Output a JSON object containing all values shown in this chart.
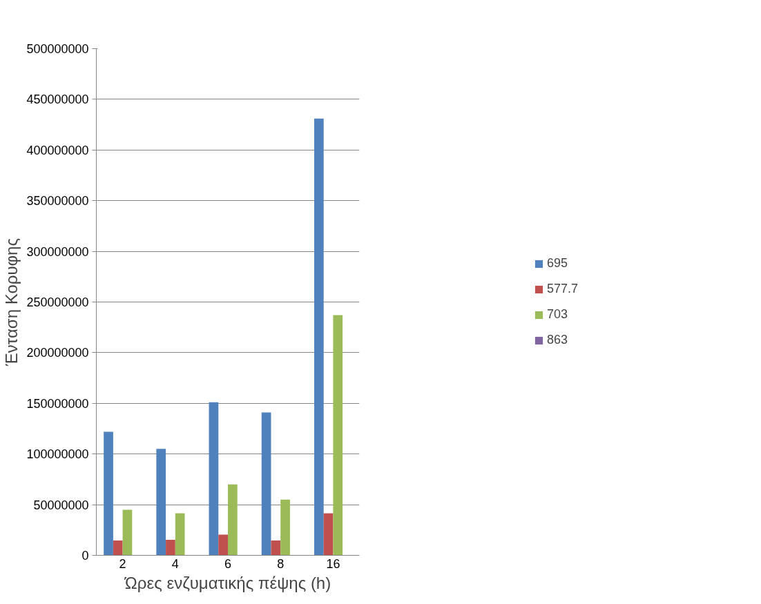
{
  "chart_data": {
    "type": "bar",
    "xlabel": "Ώρες ενζυματικής πέψης (h)",
    "ylabel": "Ένταση Κορυφης",
    "categories": [
      "2",
      "4",
      "6",
      "8",
      "16"
    ],
    "series": [
      {
        "name": "695",
        "color": "#4f81bd",
        "values": [
          122000000,
          105000000,
          151000000,
          141000000,
          431000000
        ]
      },
      {
        "name": "577.7",
        "color": "#c0504d",
        "values": [
          14600000,
          15300000,
          20400000,
          14600000,
          41500000
        ]
      },
      {
        "name": "703",
        "color": "#9bbb59",
        "values": [
          45000000,
          41500000,
          70000000,
          55000000,
          237000000
        ]
      },
      {
        "name": "863",
        "color": "#8064a2",
        "values": [
          null,
          null,
          null,
          null,
          null
        ]
      }
    ],
    "ylim": [
      0,
      500000000
    ],
    "yticks": [
      0,
      50000000,
      100000000,
      150000000,
      200000000,
      250000000,
      300000000,
      350000000,
      400000000,
      450000000,
      500000000
    ],
    "grid": "y",
    "legend": "right"
  }
}
